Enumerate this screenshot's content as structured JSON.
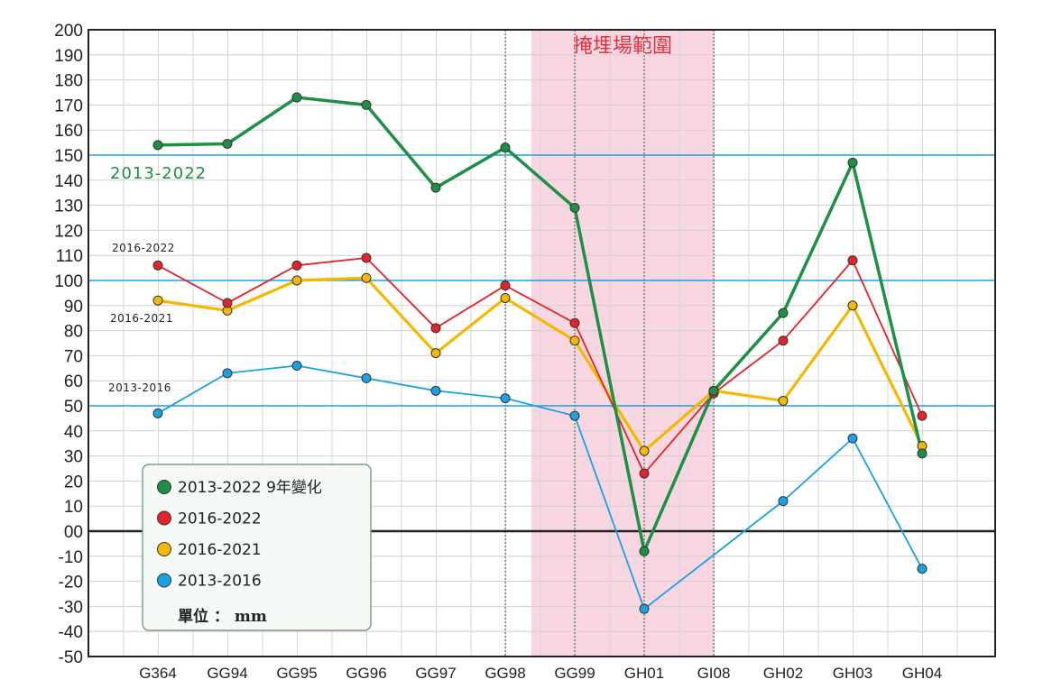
{
  "chart_data": {
    "type": "line",
    "title": "",
    "xlabel": "",
    "ylabel": "",
    "ylim": [
      -50,
      200
    ],
    "y_ticks": [
      "200",
      "190",
      "180",
      "170",
      "160",
      "150",
      "140",
      "130",
      "120",
      "110",
      "100",
      "90",
      "80",
      "70",
      "60",
      "50",
      "40",
      "30",
      "20",
      "10",
      "00",
      "-10",
      "-20",
      "-30",
      "-40",
      "-50"
    ],
    "categories": [
      "G364",
      "GG94",
      "GG95",
      "GG96",
      "GG97",
      "GG98",
      "GG99",
      "GH01",
      "GI08",
      "GH02",
      "GH03",
      "GH04"
    ],
    "grid": true,
    "reference_lines": [
      150,
      100,
      50,
      0
    ],
    "highlight_region": {
      "label": "掩埋場範圍",
      "from": "GG99",
      "to": "GI08",
      "color": "#f8d7e3"
    },
    "series": [
      {
        "name": "2013-2022 9年變化",
        "color": "#1e8f46",
        "label": "2013-2022",
        "values": [
          154,
          154.5,
          173,
          170,
          137,
          153,
          129,
          -8,
          56,
          87,
          147,
          31
        ]
      },
      {
        "name": "2016-2022",
        "color": "#e3242b",
        "label": "2016-2022",
        "values": [
          106,
          91,
          106,
          109,
          81,
          98,
          83,
          23,
          55,
          76,
          108,
          46
        ]
      },
      {
        "name": "2016-2021",
        "color": "#f5b800",
        "label": "2016-2021",
        "values": [
          92,
          88,
          100,
          101,
          71,
          93,
          76,
          32,
          56,
          52,
          90,
          34
        ]
      },
      {
        "name": "2013-2016",
        "color": "#1ba1e2",
        "label": "2013-2016",
        "values": [
          47,
          63,
          66,
          61,
          56,
          53,
          46,
          -31,
          null,
          12,
          37,
          -15
        ]
      }
    ],
    "legend": {
      "placement": "bottom-left",
      "items": [
        "2013-2022 9年變化",
        "2016-2022",
        "2016-2021",
        "2013-2016"
      ],
      "unit": "單位 ： mm"
    }
  }
}
